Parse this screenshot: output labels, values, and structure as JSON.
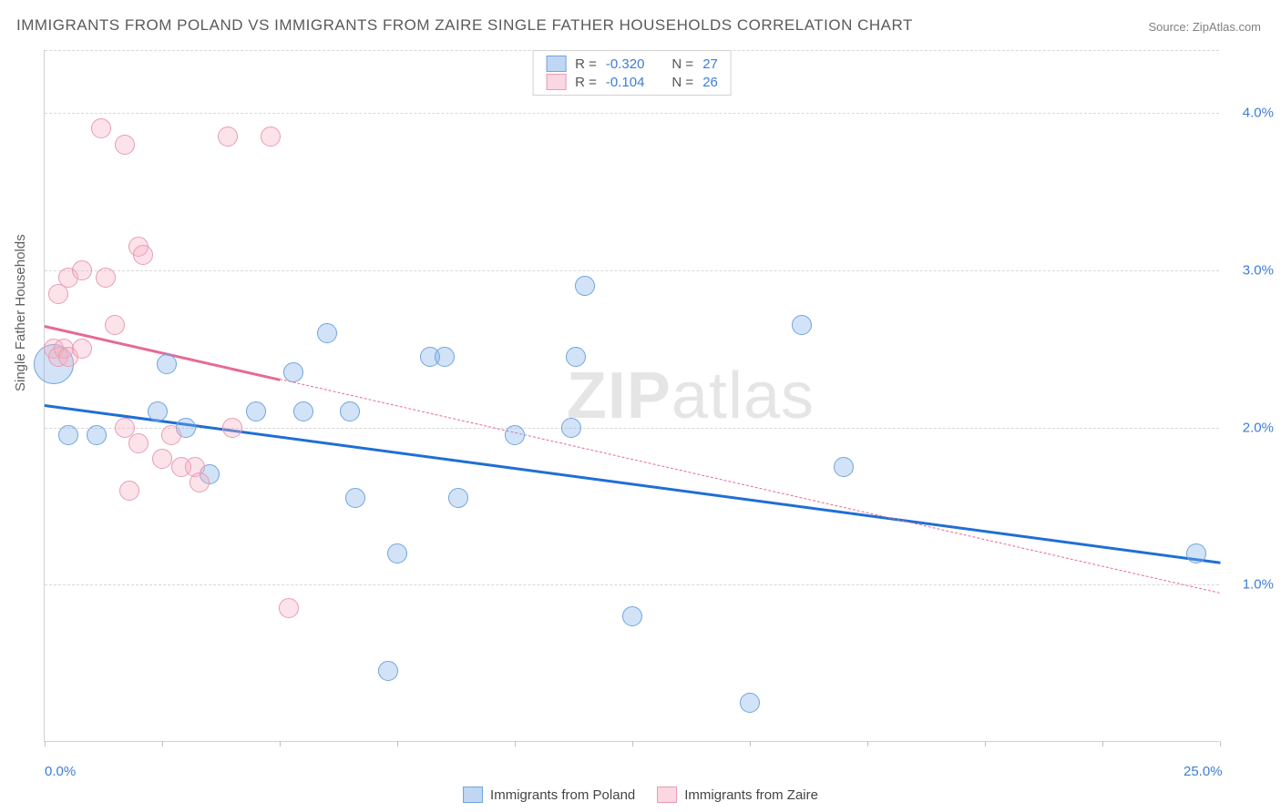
{
  "title": "IMMIGRANTS FROM POLAND VS IMMIGRANTS FROM ZAIRE SINGLE FATHER HOUSEHOLDS CORRELATION CHART",
  "source": "Source: ZipAtlas.com",
  "ylabel": "Single Father Households",
  "watermark_bold": "ZIP",
  "watermark_light": "atlas",
  "chart": {
    "type": "scatter",
    "xlim": [
      0,
      25
    ],
    "ylim": [
      0,
      4.4
    ],
    "x_ticks": [
      0,
      2.5,
      5,
      7.5,
      10,
      12.5,
      15,
      17.5,
      20,
      22.5,
      25
    ],
    "x_tick_labels": {
      "0": "0.0%",
      "25": "25.0%"
    },
    "y_ticks": [
      1.0,
      2.0,
      3.0,
      4.0
    ],
    "y_tick_labels": [
      "1.0%",
      "2.0%",
      "3.0%",
      "4.0%"
    ],
    "grid_color": "#d8d8d8",
    "border_color": "#d0d0d0",
    "background_color": "#ffffff",
    "tick_label_color": "#3b7dd8",
    "axis_label_color": "#606060",
    "title_color": "#5a5a5a",
    "title_fontsize": 17,
    "label_fontsize": 15,
    "marker_radius": 11,
    "series": [
      {
        "name": "Immigrants from Poland",
        "color_fill": "rgba(127,176,234,0.35)",
        "color_stroke": "#6fa4dd",
        "regression_color": "#1f6fd4",
        "R": "-0.320",
        "N": "27",
        "regression": {
          "x1": 0,
          "y1": 2.15,
          "x2": 25,
          "y2": 1.15
        },
        "points": [
          {
            "x": 0.2,
            "y": 2.4,
            "r": 22
          },
          {
            "x": 0.5,
            "y": 1.95
          },
          {
            "x": 1.1,
            "y": 1.95
          },
          {
            "x": 2.6,
            "y": 2.4
          },
          {
            "x": 2.4,
            "y": 2.1
          },
          {
            "x": 3.0,
            "y": 2.0
          },
          {
            "x": 3.5,
            "y": 1.7
          },
          {
            "x": 4.5,
            "y": 2.1
          },
          {
            "x": 5.3,
            "y": 2.35
          },
          {
            "x": 5.5,
            "y": 2.1
          },
          {
            "x": 6.0,
            "y": 2.6
          },
          {
            "x": 6.5,
            "y": 2.1
          },
          {
            "x": 6.6,
            "y": 1.55
          },
          {
            "x": 7.5,
            "y": 1.2
          },
          {
            "x": 7.3,
            "y": 0.45
          },
          {
            "x": 8.2,
            "y": 2.45
          },
          {
            "x": 8.5,
            "y": 2.45
          },
          {
            "x": 8.8,
            "y": 1.55
          },
          {
            "x": 10.0,
            "y": 1.95
          },
          {
            "x": 11.2,
            "y": 2.0
          },
          {
            "x": 11.3,
            "y": 2.45
          },
          {
            "x": 11.5,
            "y": 2.9
          },
          {
            "x": 12.5,
            "y": 0.8
          },
          {
            "x": 15.0,
            "y": 0.25
          },
          {
            "x": 16.1,
            "y": 2.65
          },
          {
            "x": 17.0,
            "y": 1.75
          },
          {
            "x": 24.5,
            "y": 1.2
          }
        ]
      },
      {
        "name": "Immigrants from Zaire",
        "color_fill": "rgba(245,175,195,0.35)",
        "color_stroke": "#e99bb5",
        "regression_color": "#e76a94",
        "R": "-0.104",
        "N": "26",
        "regression": {
          "x1": 0,
          "y1": 2.65,
          "x2": 25,
          "y2": 0.95
        },
        "solid_until_x": 5.0,
        "points": [
          {
            "x": 0.2,
            "y": 2.5
          },
          {
            "x": 0.3,
            "y": 2.85
          },
          {
            "x": 0.3,
            "y": 2.45
          },
          {
            "x": 0.4,
            "y": 2.5
          },
          {
            "x": 0.5,
            "y": 2.95
          },
          {
            "x": 0.5,
            "y": 2.45
          },
          {
            "x": 0.8,
            "y": 3.0
          },
          {
            "x": 0.8,
            "y": 2.5
          },
          {
            "x": 1.2,
            "y": 3.9
          },
          {
            "x": 1.3,
            "y": 2.95
          },
          {
            "x": 1.5,
            "y": 2.65
          },
          {
            "x": 1.7,
            "y": 3.8
          },
          {
            "x": 1.7,
            "y": 2.0
          },
          {
            "x": 1.8,
            "y": 1.6
          },
          {
            "x": 2.0,
            "y": 3.15
          },
          {
            "x": 2.0,
            "y": 1.9
          },
          {
            "x": 2.1,
            "y": 3.1
          },
          {
            "x": 2.5,
            "y": 1.8
          },
          {
            "x": 2.7,
            "y": 1.95
          },
          {
            "x": 2.9,
            "y": 1.75
          },
          {
            "x": 3.2,
            "y": 1.75
          },
          {
            "x": 3.3,
            "y": 1.65
          },
          {
            "x": 3.9,
            "y": 3.85
          },
          {
            "x": 4.0,
            "y": 2.0
          },
          {
            "x": 4.8,
            "y": 3.85
          },
          {
            "x": 5.2,
            "y": 0.85
          }
        ]
      }
    ]
  },
  "legend_top": {
    "rows": [
      {
        "swatch": "blue",
        "r_label": "R =",
        "r_val": "-0.320",
        "n_label": "N =",
        "n_val": "27"
      },
      {
        "swatch": "pink",
        "r_label": "R =",
        "r_val": "-0.104",
        "n_label": "N =",
        "n_val": "26"
      }
    ]
  },
  "legend_bottom": {
    "items": [
      {
        "swatch": "blue",
        "label": "Immigrants from Poland"
      },
      {
        "swatch": "pink",
        "label": "Immigrants from Zaire"
      }
    ]
  }
}
